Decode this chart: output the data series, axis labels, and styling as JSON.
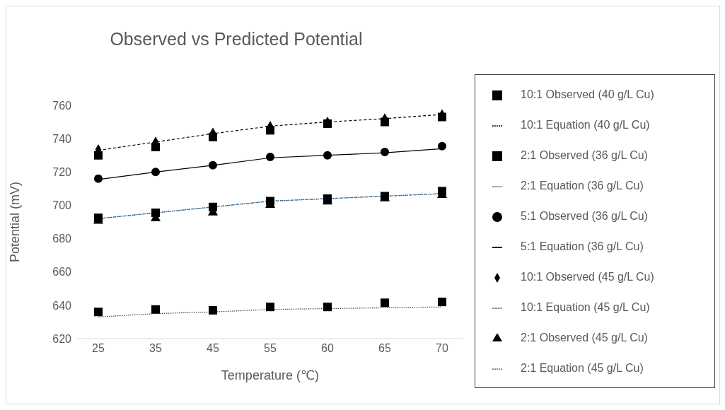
{
  "chart_data": {
    "type": "line",
    "title": "Observed vs Predicted Potential",
    "xlabel": "Temperature (℃)",
    "ylabel": "Potential (mV)",
    "categories": [
      "25",
      "35",
      "45",
      "55",
      "60",
      "65",
      "70"
    ],
    "ylim": [
      620,
      760
    ],
    "yticks": [
      620,
      640,
      660,
      680,
      700,
      720,
      740,
      760
    ],
    "grid": false,
    "legend": "right",
    "series": [
      {
        "name": "10:1 Observed (40 g/L Cu)",
        "type": "scatter",
        "marker": "square",
        "color": "#000000",
        "values": [
          730,
          735,
          741,
          745,
          749,
          750,
          753
        ]
      },
      {
        "name": "10:1 Equation (40 g/L Cu)",
        "type": "line",
        "line_style": "dashed",
        "marker": "none",
        "color": "#000000",
        "values": [
          733,
          738,
          743,
          747.5,
          750,
          752,
          754.5
        ]
      },
      {
        "name": "2:1 Observed (36 g/L Cu)",
        "type": "scatter",
        "marker": "square",
        "color": "#000000",
        "values": [
          692.5,
          695.5,
          699,
          702.5,
          704,
          705.5,
          708.5
        ]
      },
      {
        "name": "2:1 Equation (36 g/L Cu)",
        "type": "line",
        "line_style": "dotted",
        "marker": "none",
        "color": "#404040",
        "values": [
          692,
          695.5,
          699,
          702.5,
          704,
          705.5,
          707
        ]
      },
      {
        "name": "5:1 Observed (36 g/L Cu)",
        "type": "scatter",
        "marker": "circle",
        "color": "#000000",
        "values": [
          716,
          720,
          724,
          729,
          730,
          732,
          735.5
        ]
      },
      {
        "name": "5:1 Equation (36 g/L Cu)",
        "type": "line",
        "line_style": "solid",
        "marker": "none",
        "color": "#000000",
        "values": [
          715.5,
          720,
          724,
          728.5,
          730,
          731.5,
          734
        ]
      },
      {
        "name": "10:1 Observed (45 g/L Cu)",
        "type": "scatter",
        "marker": "diamond",
        "color": "#000000",
        "values": [
          733.5,
          738,
          743.5,
          747.5,
          750,
          752,
          754.5
        ]
      },
      {
        "name": "10:1 Equation (45 g/L Cu)",
        "type": "line",
        "line_style": "dotted",
        "marker": "none",
        "color": "#404040",
        "values": [
          633,
          635,
          636,
          637.5,
          638,
          638.5,
          639
        ]
      },
      {
        "name": "2:1 Observed (45 g/L Cu)",
        "type": "scatter",
        "marker": "triangle",
        "color": "#000000",
        "values": [
          691.5,
          693,
          696.5,
          701,
          703,
          705,
          707
        ]
      },
      {
        "name": "2:1 Equation (45 g/L Cu)",
        "type": "line",
        "line_style": "dashed",
        "marker": "none",
        "color": "#2e75b6",
        "values": [
          692,
          695.5,
          699,
          702.5,
          704,
          705.5,
          707
        ]
      },
      {
        "type": "scatter",
        "marker": "square",
        "color": "#000000",
        "values": [
          636,
          637.5,
          637,
          639,
          639,
          641.5,
          642
        ]
      }
    ]
  }
}
